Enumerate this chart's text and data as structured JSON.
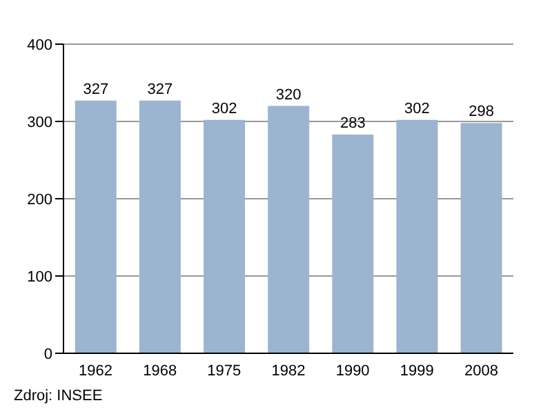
{
  "chart_data": {
    "type": "bar",
    "categories": [
      "1962",
      "1968",
      "1975",
      "1982",
      "1990",
      "1999",
      "2008"
    ],
    "values": [
      327,
      327,
      302,
      320,
      283,
      302,
      298
    ],
    "color": "#9cb4cf",
    "ylim": [
      0,
      400
    ],
    "yticks": [
      0,
      100,
      200,
      300,
      400
    ],
    "grid": "y",
    "data_labels": true,
    "annotations": [
      "Zdroj: INSEE"
    ]
  }
}
